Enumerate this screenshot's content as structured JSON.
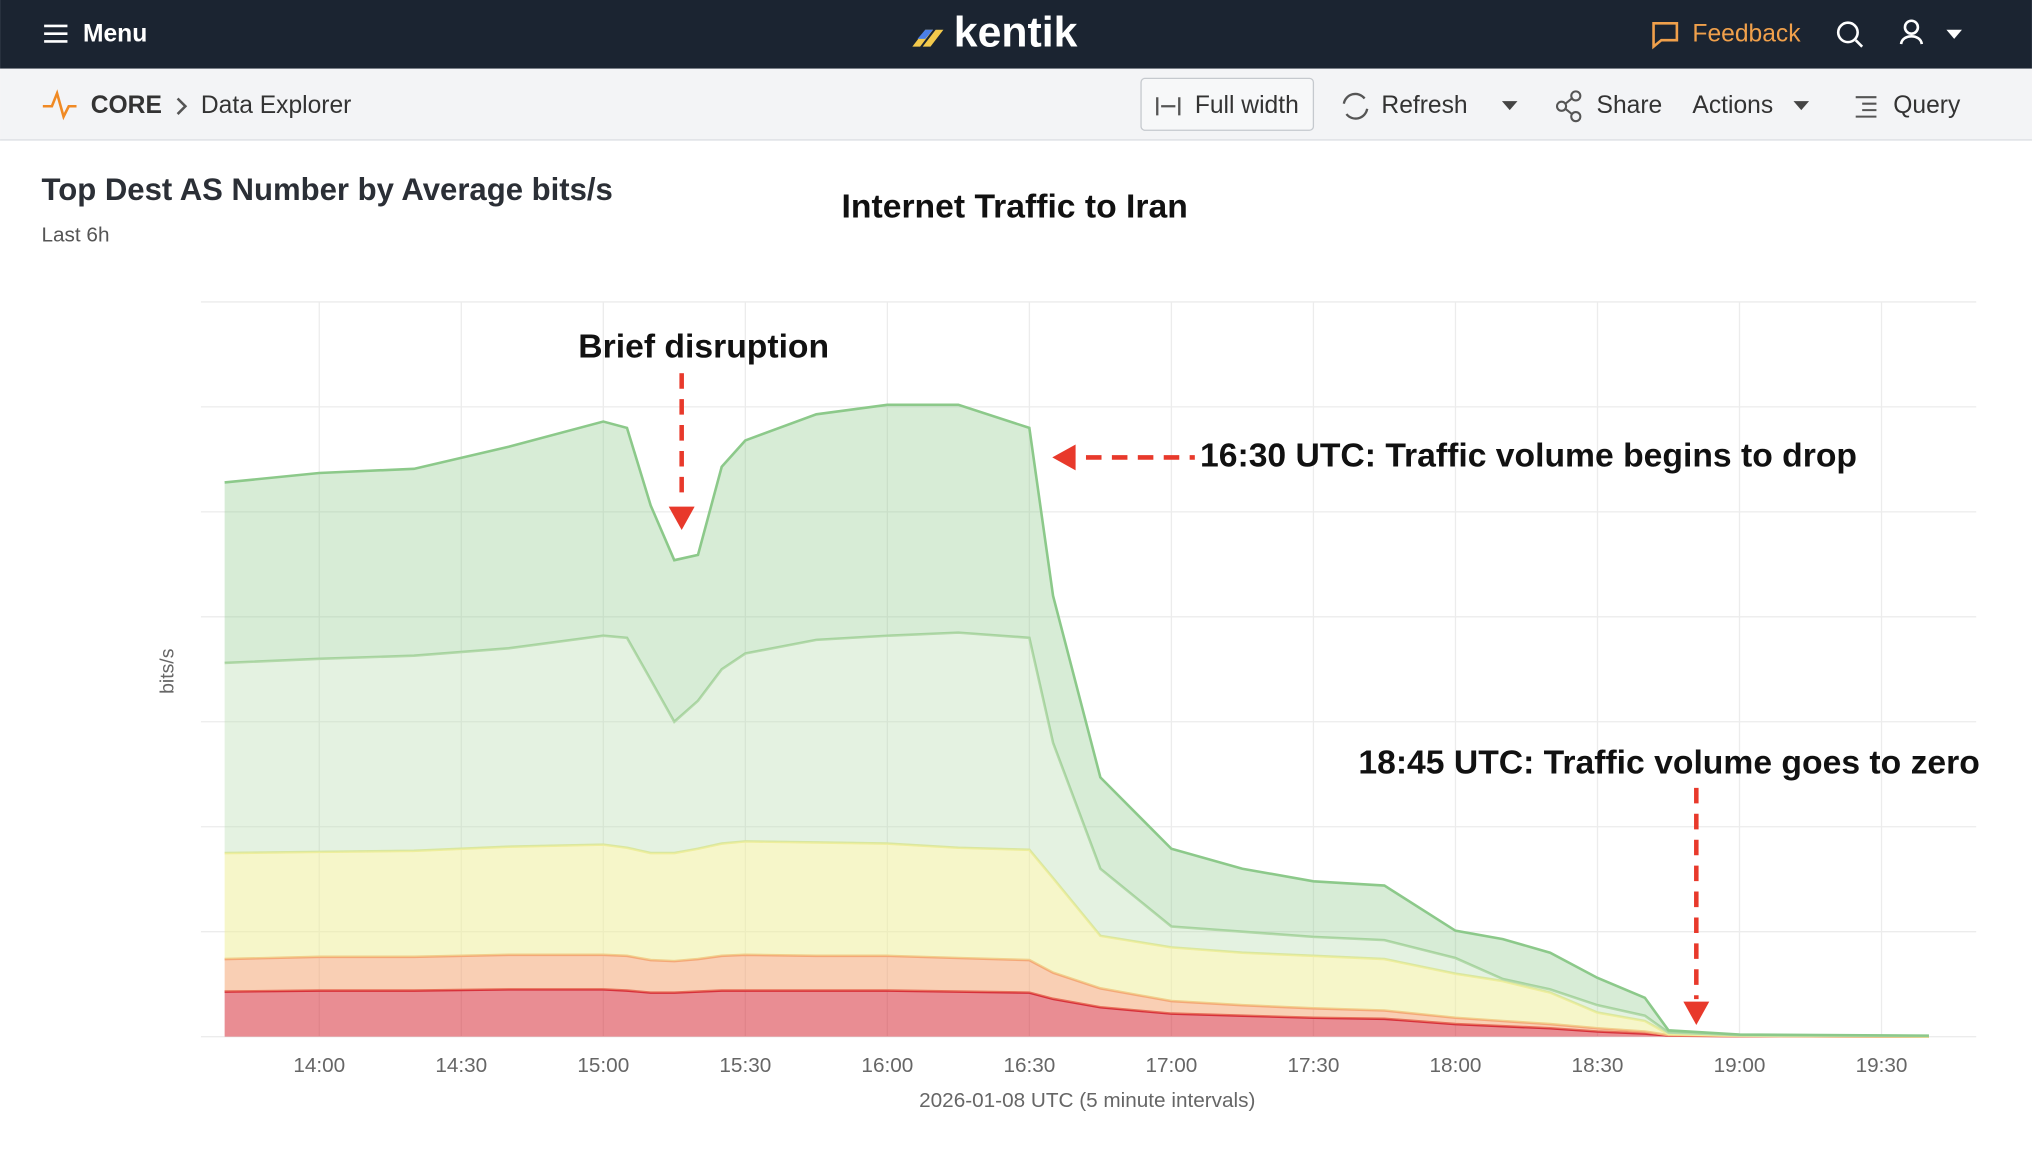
{
  "header": {
    "menu": "Menu",
    "brand": "kentik",
    "feedback": "Feedback"
  },
  "toolbar": {
    "section": "CORE",
    "page": "Data Explorer",
    "full_width": "Full width",
    "refresh": "Refresh",
    "share": "Share",
    "actions": "Actions",
    "query": "Query"
  },
  "panel": {
    "title": "Top Dest AS Number by Average bits/s",
    "subtitle": "Last 6h"
  },
  "chart_data": {
    "type": "area",
    "stacked": true,
    "title": "Internet Traffic to Iran",
    "y_label": "bits/s",
    "x_label": "2026-01-08 UTC (5 minute intervals)",
    "x": [
      "13:40",
      "14:00",
      "14:20",
      "14:40",
      "15:00",
      "15:05",
      "15:10",
      "15:15",
      "15:20",
      "15:25",
      "15:30",
      "15:45",
      "16:00",
      "16:15",
      "16:30",
      "16:35",
      "16:45",
      "17:00",
      "17:15",
      "17:30",
      "17:45",
      "18:00",
      "18:10",
      "18:20",
      "18:30",
      "18:40",
      "18:45",
      "19:00",
      "19:40"
    ],
    "xticks": [
      "14:00",
      "14:30",
      "15:00",
      "15:30",
      "16:00",
      "16:30",
      "17:00",
      "17:30",
      "18:00",
      "18:30",
      "19:00",
      "19:30"
    ],
    "xlim": [
      "13:35",
      "19:50"
    ],
    "ylim": [
      0,
      7
    ],
    "grid": true,
    "series": [
      {
        "color": "#d7303a",
        "values": [
          0.43,
          0.44,
          0.44,
          0.45,
          0.45,
          0.44,
          0.42,
          0.42,
          0.43,
          0.44,
          0.44,
          0.44,
          0.44,
          0.43,
          0.42,
          0.36,
          0.28,
          0.22,
          0.2,
          0.18,
          0.17,
          0.12,
          0.1,
          0.08,
          0.05,
          0.03,
          0.01,
          0.005,
          0
        ]
      },
      {
        "color": "#f4a877",
        "values": [
          0.31,
          0.32,
          0.32,
          0.33,
          0.33,
          0.33,
          0.31,
          0.3,
          0.31,
          0.33,
          0.34,
          0.33,
          0.33,
          0.32,
          0.31,
          0.25,
          0.18,
          0.12,
          0.1,
          0.09,
          0.08,
          0.06,
          0.05,
          0.04,
          0.03,
          0.02,
          0.005,
          0.002,
          0
        ]
      },
      {
        "color": "#eeee9c",
        "values": [
          1.01,
          1.0,
          1.01,
          1.03,
          1.05,
          1.03,
          1.02,
          1.03,
          1.05,
          1.07,
          1.08,
          1.08,
          1.07,
          1.05,
          1.05,
          0.9,
          0.5,
          0.51,
          0.5,
          0.5,
          0.49,
          0.42,
          0.38,
          0.3,
          0.15,
          0.1,
          0.01,
          0.003,
          0.002
        ]
      },
      {
        "color": "#b3d9aa",
        "values": [
          1.81,
          1.84,
          1.86,
          1.89,
          1.99,
          2.0,
          1.65,
          1.25,
          1.41,
          1.66,
          1.79,
          1.93,
          1.98,
          2.05,
          2.02,
          1.29,
          0.64,
          0.2,
          0.2,
          0.18,
          0.18,
          0.15,
          0.02,
          0.03,
          0.07,
          0.05,
          0.015,
          0.005,
          0.006
        ]
      },
      {
        "color": "#8cc98a",
        "values": [
          1.72,
          1.77,
          1.78,
          1.92,
          2.04,
          2.0,
          1.66,
          1.54,
          1.39,
          1.93,
          2.03,
          2.15,
          2.2,
          2.17,
          2.0,
          1.4,
          0.87,
          0.74,
          0.6,
          0.53,
          0.52,
          0.26,
          0.38,
          0.35,
          0.26,
          0.17,
          0.02,
          0.005,
          0.002
        ]
      }
    ],
    "annotations": [
      "Brief disruption",
      "16:30 UTC: Traffic volume begins to drop",
      "18:45 UTC: Traffic volume goes to zero"
    ]
  }
}
